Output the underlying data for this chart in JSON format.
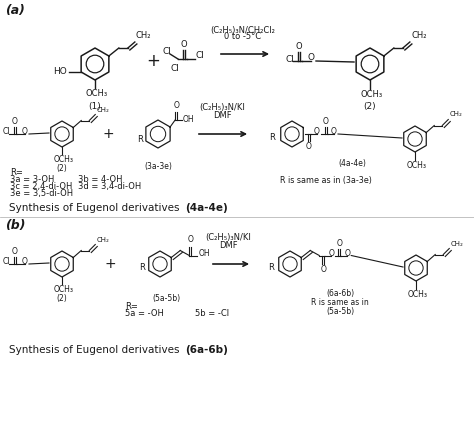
{
  "bg_color": "#ffffff",
  "text_color": "#1a1a1a",
  "title_a": "Synthesis of Eugenol derivatives ",
  "title_a_bold": "(4a-4e)",
  "title_b": "Synthesis of Eugenol derivatives ",
  "title_b_bold": "(6a-6b)",
  "label_a": "(a)",
  "label_b": "(b)",
  "cond_1": "(C₂H₅)₃N/CH₂Cl₂",
  "cond_1b": "0 to -5°C",
  "cond_2": "(C₂H₅)₃N/KI",
  "cond_2b": "DMF",
  "R_notes_a": [
    "R=",
    "3a = 3-OH",
    "3b = 4-OH",
    "3c = 2,4-di-OH",
    "3d = 3,4-di-OH",
    "3e = 3,5-di-OH"
  ],
  "R_same_a": "R is same as in (3a-3e)",
  "R_notes_b1": "R=",
  "R_notes_b2": "5a = -OH",
  "R_notes_b3": "5b = -Cl",
  "R_same_b1": "R is same as in",
  "R_same_b2": "(5a-5b)"
}
